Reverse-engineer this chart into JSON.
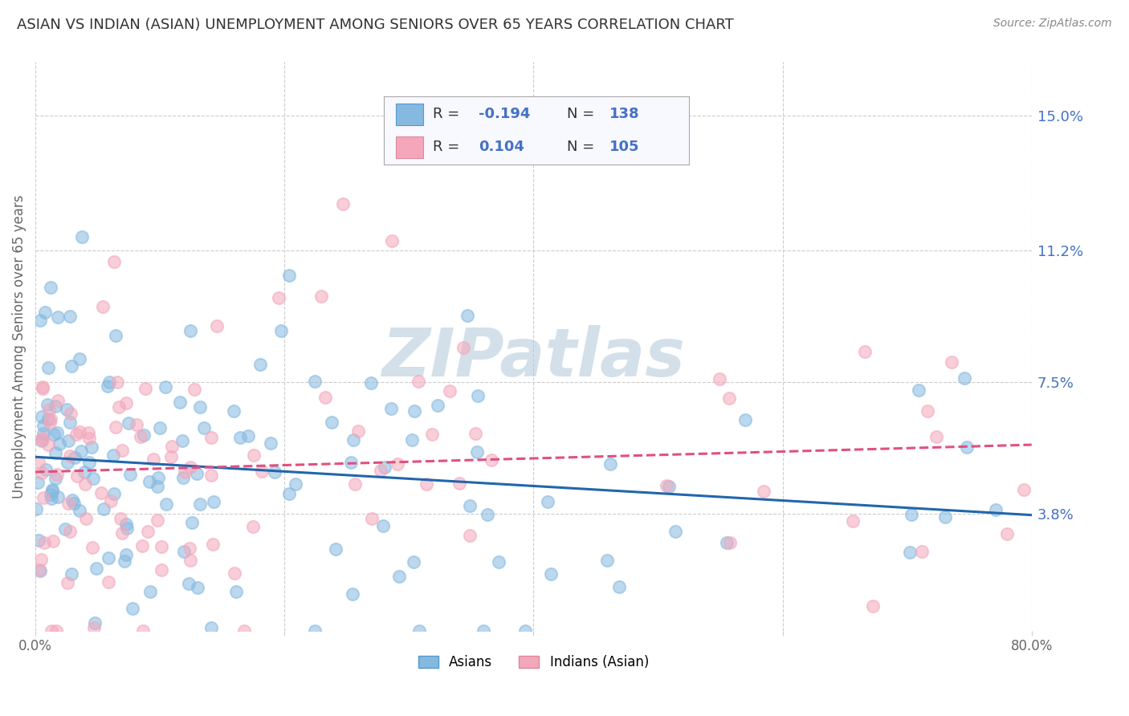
{
  "title": "ASIAN VS INDIAN (ASIAN) UNEMPLOYMENT AMONG SENIORS OVER 65 YEARS CORRELATION CHART",
  "source": "Source: ZipAtlas.com",
  "ylabel_ticks": [
    3.8,
    7.5,
    11.2,
    15.0
  ],
  "ylabel_label": "Unemployment Among Seniors over 65 years",
  "xlim": [
    0.0,
    80.0
  ],
  "ylim": [
    0.5,
    16.5
  ],
  "asian_color": "#85b9e0",
  "indian_color": "#f4a7bb",
  "asian_R": -0.194,
  "asian_N": 138,
  "indian_R": 0.104,
  "indian_N": 105,
  "trend_asian_color": "#2166ac",
  "trend_indian_color": "#e05080",
  "background_color": "#ffffff",
  "grid_color": "#cccccc",
  "watermark_text": "ZIPatlas",
  "watermark_color": "#b0c8d8",
  "legend_label_asian": "Asians",
  "legend_label_indian": "Indians (Asian)",
  "r_label_color": "#4472c4",
  "n_label_color": "#4472c4",
  "title_color": "#333333",
  "source_color": "#888888",
  "axis_label_color": "#666666",
  "tick_color": "#666666"
}
